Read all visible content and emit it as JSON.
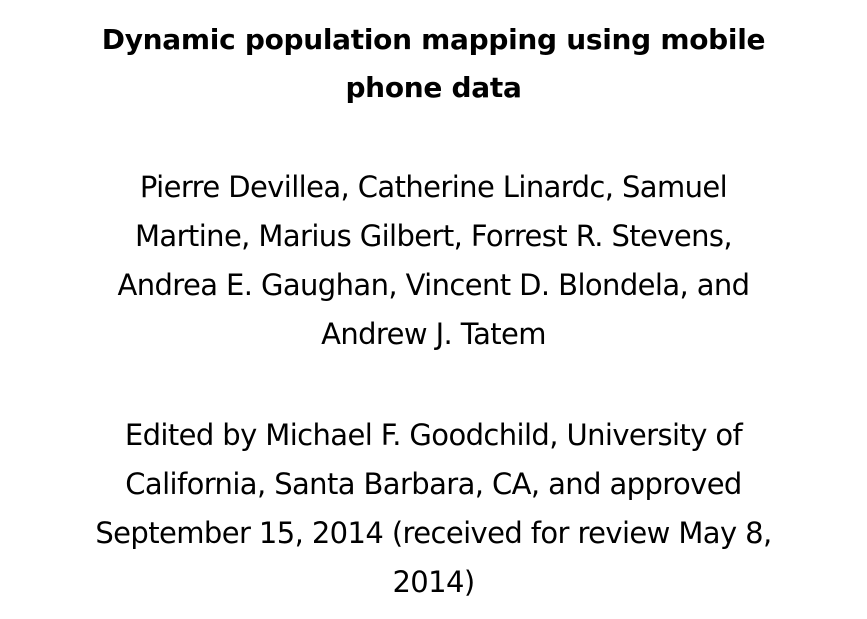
{
  "title": {
    "lines": [
      "Dynamic population mapping using mobile",
      "phone data"
    ]
  },
  "authors": {
    "lines": [
      "Pierre Devillea, Catherine Linardc, Samuel",
      "Martine, Marius Gilbert, Forrest R. Stevens,",
      "Andrea E. Gaughan, Vincent D. Blondela, and",
      "Andrew J. Tatem"
    ]
  },
  "editor": {
    "lines": [
      "Edited by Michael F. Goodchild, University of",
      "California, Santa Barbara, CA, and approved",
      "September 15, 2014 (received for review May 8,",
      "2014)"
    ]
  }
}
